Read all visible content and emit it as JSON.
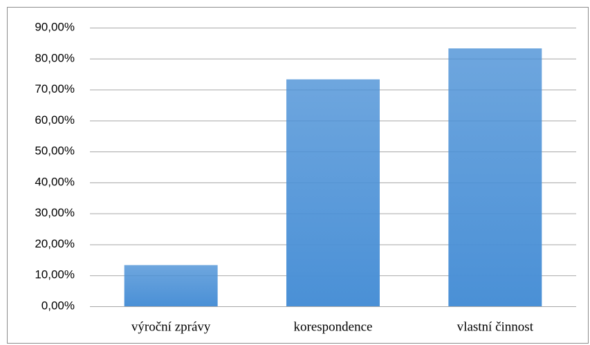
{
  "chart_data": {
    "type": "bar",
    "categories": [
      "výroční zprávy",
      "korespondence",
      "vlastní činnost"
    ],
    "values": [
      13.3,
      73.3,
      83.3
    ],
    "color": "#4a90d6",
    "ylim": [
      0,
      90
    ],
    "yticks": [
      {
        "value": 0,
        "label": "0,00%"
      },
      {
        "value": 10,
        "label": "10,00%"
      },
      {
        "value": 20,
        "label": "20,00%"
      },
      {
        "value": 30,
        "label": "30,00%"
      },
      {
        "value": 40,
        "label": "40,00%"
      },
      {
        "value": 50,
        "label": "50,00%"
      },
      {
        "value": 60,
        "label": "60,00%"
      },
      {
        "value": 70,
        "label": "70,00%"
      },
      {
        "value": 80,
        "label": "80,00%"
      },
      {
        "value": 90,
        "label": "90,00%"
      }
    ],
    "grid": true
  }
}
